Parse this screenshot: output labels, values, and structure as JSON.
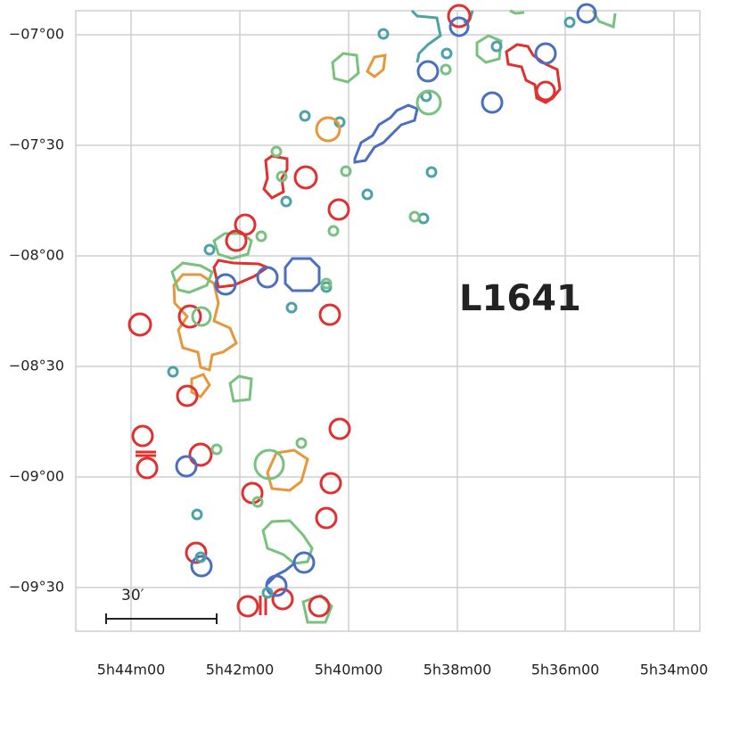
{
  "map": {
    "x_tick_labels": [
      "5h44m00",
      "5h42m00",
      "5h40m00",
      "5h38m00",
      "5h36m00",
      "5h34m00"
    ],
    "y_tick_labels": [
      "−07°00",
      "−07°30",
      "−08°00",
      "−08°30",
      "−09°00",
      "−09°30"
    ],
    "region_label": "L1641",
    "scale_bar_label": "30′"
  }
}
